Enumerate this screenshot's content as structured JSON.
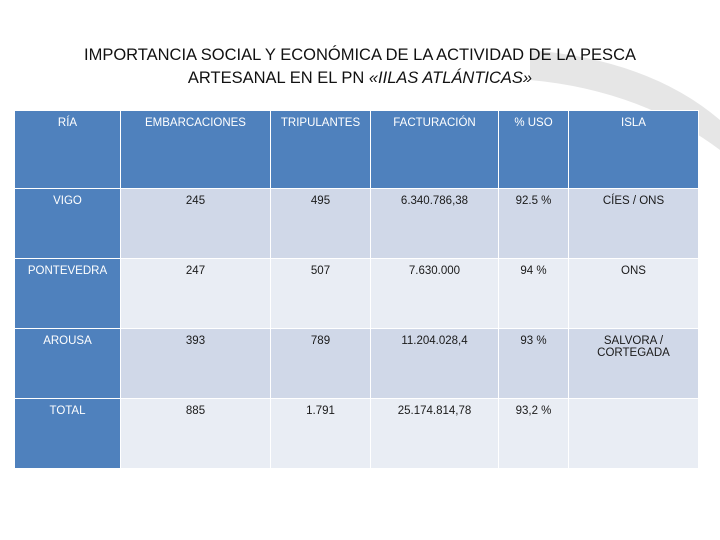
{
  "title": {
    "line1": "IMPORTANCIA SOCIAL Y ECONÓMICA DE LA ACTIVIDAD DE LA PESCA",
    "line2_prefix": "ARTESANAL EN EL PN ",
    "line2_italic": "«IILAS ATLÁNTICAS»"
  },
  "table": {
    "headers": [
      "RÍA",
      "EMBARCACIONES",
      "TRIPULANTES",
      "FACTURACIÓN",
      "% USO",
      "ISLA"
    ],
    "rows": [
      [
        "VIGO",
        "245",
        "495",
        "6.340.786,38",
        "92.5 %",
        "CÍES / ONS"
      ],
      [
        "PONTEVEDRA",
        "247",
        "507",
        "7.630.000",
        "94 %",
        "ONS"
      ],
      [
        "AROUSA",
        "393",
        "789",
        "11.204.028,4",
        "93 %",
        "SALVORA / CORTEGADA"
      ],
      [
        "TOTAL",
        "885",
        "1.791",
        "25.174.814,78",
        "93,2 %",
        ""
      ]
    ]
  },
  "colors": {
    "header_blue": "#4f81bd",
    "row_dark": "#d0d8e8",
    "row_light": "#e9edf4"
  }
}
